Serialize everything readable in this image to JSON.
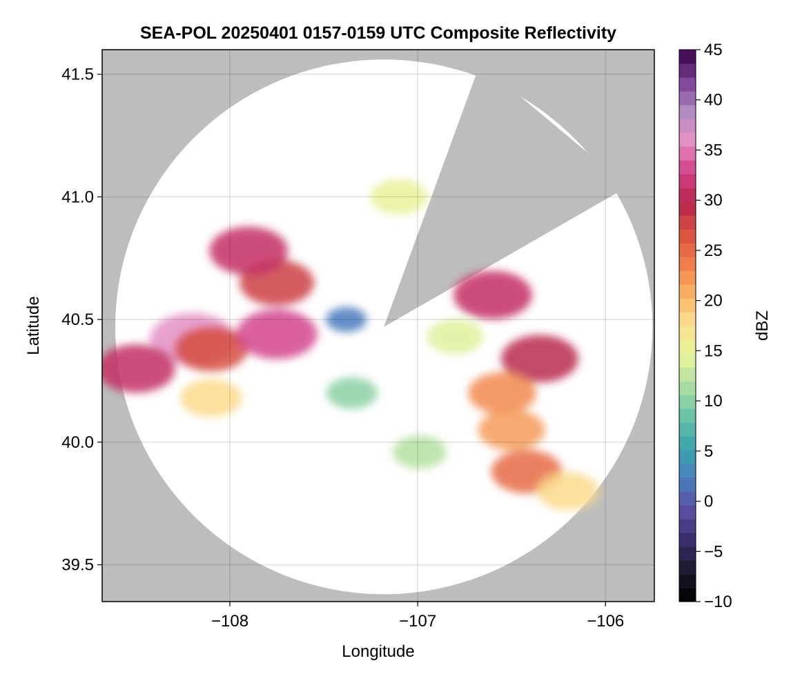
{
  "chart_data": {
    "type": "heatmap",
    "title": "SEA-POL 20250401 0157-0159 UTC Composite Reflectivity",
    "xlabel": "Longitude",
    "ylabel": "Latitude",
    "xlim": [
      -108.68,
      -105.74
    ],
    "ylim": [
      39.35,
      41.6
    ],
    "xticks": [
      -108,
      -107,
      -106
    ],
    "xtick_labels": [
      "−108",
      "−107",
      "−106"
    ],
    "yticks": [
      39.5,
      40.0,
      40.5,
      41.0,
      41.5
    ],
    "ytick_labels": [
      "39.5",
      "40.0",
      "40.5",
      "41.0",
      "41.5"
    ],
    "grid": true,
    "background_color": "#bdbdbd",
    "coverage": {
      "center_lon": -107.18,
      "center_lat": 40.47,
      "radius_lon": 1.43,
      "radius_lat": 1.09,
      "blocked_sector_deg_from_north": [
        20,
        60
      ]
    },
    "colorbar": {
      "label": "dBZ",
      "range": [
        -10,
        45
      ],
      "ticks": [
        -10,
        -5,
        0,
        5,
        10,
        15,
        20,
        25,
        30,
        35,
        40,
        45
      ],
      "tick_labels": [
        "−10",
        "−5",
        "0",
        "5",
        "10",
        "15",
        "20",
        "25",
        "30",
        "35",
        "40",
        "45"
      ],
      "colormap": [
        "#000000",
        "#1b1b2e",
        "#3b2d6d",
        "#5a4ea4",
        "#4a7fbf",
        "#3aa3ad",
        "#66c2a5",
        "#a9dca1",
        "#e6f49a",
        "#fbe193",
        "#f8b565",
        "#ef7f4b",
        "#d9523f",
        "#b8264a",
        "#d23f88",
        "#e691c4",
        "#b18bc4",
        "#7d3f95",
        "#3a0048"
      ]
    },
    "echoes": [
      {
        "region": "northwest main storm",
        "lon": -107.75,
        "lat": 40.65,
        "dbz": 28
      },
      {
        "region": "northwest core",
        "lon": -107.9,
        "lat": 40.78,
        "dbz": 31
      },
      {
        "region": "west band core",
        "lon": -108.2,
        "lat": 40.42,
        "dbz": 36
      },
      {
        "region": "west band",
        "lon": -108.1,
        "lat": 40.38,
        "dbz": 27
      },
      {
        "region": "far west cell",
        "lon": -108.5,
        "lat": 40.3,
        "dbz": 31
      },
      {
        "region": "central band",
        "lon": -107.75,
        "lat": 40.44,
        "dbz": 33
      },
      {
        "region": "near radar weak echo",
        "lon": -107.38,
        "lat": 40.5,
        "dbz": 2
      },
      {
        "region": "north arc",
        "lon": -107.1,
        "lat": 41.0,
        "dbz": 15
      },
      {
        "region": "small west cell",
        "lon": -108.1,
        "lat": 40.18,
        "dbz": 18
      },
      {
        "region": "northeast cell",
        "lon": -106.6,
        "lat": 40.6,
        "dbz": 31
      },
      {
        "region": "east cell",
        "lon": -106.35,
        "lat": 40.34,
        "dbz": 30
      },
      {
        "region": "east scatter",
        "lon": -106.8,
        "lat": 40.43,
        "dbz": 14
      },
      {
        "region": "southeast line",
        "lon": -106.55,
        "lat": 40.2,
        "dbz": 23
      },
      {
        "region": "southeast line south",
        "lon": -106.5,
        "lat": 40.05,
        "dbz": 22
      },
      {
        "region": "south cell",
        "lon": -106.42,
        "lat": 39.88,
        "dbz": 25
      },
      {
        "region": "far southeast cell",
        "lon": -106.2,
        "lat": 39.8,
        "dbz": 18
      },
      {
        "region": "south scatter",
        "lon": -107.35,
        "lat": 40.2,
        "dbz": 10
      },
      {
        "region": "south scatter 2",
        "lon": -106.99,
        "lat": 39.96,
        "dbz": 12
      }
    ]
  }
}
